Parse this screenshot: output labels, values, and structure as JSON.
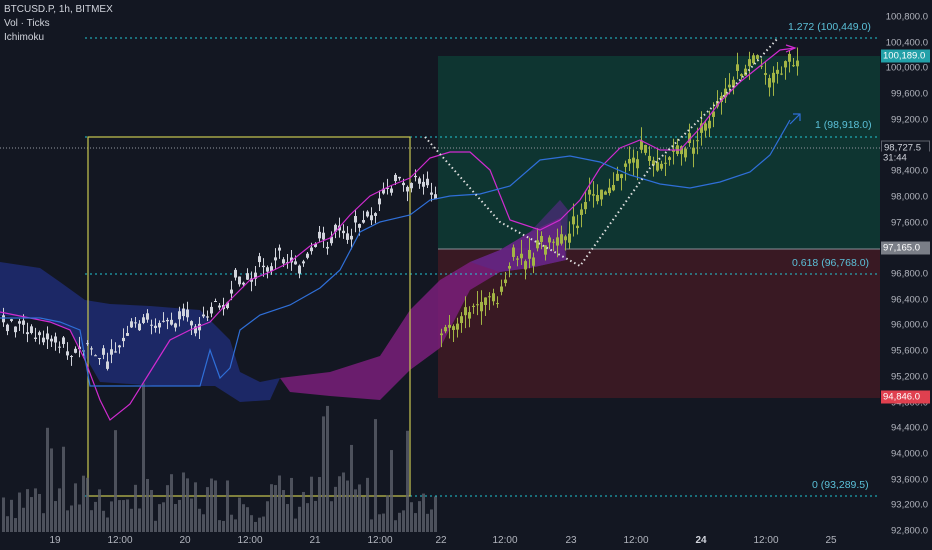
{
  "symbol": "BTCUSD.P, 1h, BITMEX",
  "indicators": [
    "Vol · Ticks",
    "Ichimoku"
  ],
  "price_axis": {
    "ticks": [
      "100,800.0",
      "100,400.0",
      "100,000.0",
      "99,600.0",
      "99,200.0",
      "98,800.0",
      "98,400.0",
      "98,000.0",
      "97,600.0",
      "97,200.0",
      "96,800.0",
      "96,400.0",
      "96,000.0",
      "95,600.0",
      "95,200.0",
      "94,800.0",
      "94,400.0",
      "94,000.0",
      "93,600.0",
      "93,200.0",
      "92,800.0"
    ],
    "current_price": "100,189.0",
    "crosshair_price": "98,727.5",
    "countdown": "31:44",
    "entry_price": "97,165.0",
    "stop_price": "94,846.0"
  },
  "time_axis": [
    "19",
    "12:00",
    "20",
    "12:00",
    "21",
    "12:00",
    "22",
    "12:00",
    "23",
    "12:00",
    "24",
    "12:00",
    "25"
  ],
  "fib_levels": [
    {
      "label": "1.272 (100,449.0)"
    },
    {
      "label": "1 (98,918.0)"
    },
    {
      "label": "0.618 (96,768.0)"
    },
    {
      "label": "0 (93,289.5)"
    }
  ],
  "colors": {
    "background": "#131722",
    "up_candle": "#d1d4dc",
    "projected_candle": "#a3b545",
    "fib_line": "#22c6d3",
    "profit_zone": "#0e3b34",
    "loss_zone": "#3e1a23",
    "conversion_line": "#d02bd0",
    "base_line": "#2f6fd8",
    "cloud_bear": "#1e2a6e",
    "cloud_bull": "#7a1f7a",
    "current_price_tag": "#22a0a8",
    "stop_tag": "#e0404f",
    "entry_tag": "#7a7e87"
  }
}
